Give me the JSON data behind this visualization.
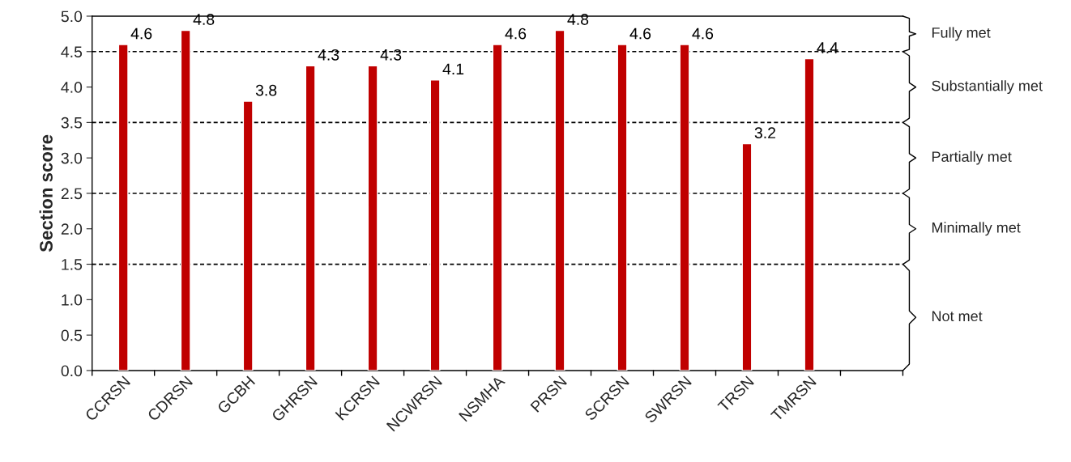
{
  "chart_data": {
    "type": "bar",
    "ylabel": "Section score",
    "categories": [
      "CCRSN",
      "CDRSN",
      "GCBH",
      "GHRSN",
      "KCRSN",
      "NCWRSN",
      "NSMHA",
      "PRSN",
      "SCRSN",
      "SWRSN",
      "TRSN",
      "TMRSN",
      null
    ],
    "values": [
      4.6,
      4.8,
      3.8,
      4.3,
      4.3,
      4.1,
      4.6,
      4.8,
      4.6,
      4.6,
      3.2,
      4.4,
      null
    ],
    "color": "#c00000",
    "ylim": [
      0,
      5
    ],
    "yticks": [
      {
        "value": 0,
        "label": "0.0"
      },
      {
        "value": 0.5,
        "label": "0.5"
      },
      {
        "value": 1,
        "label": "1.0"
      },
      {
        "value": 1.5,
        "label": "1.5"
      },
      {
        "value": 2,
        "label": "2.0"
      },
      {
        "value": 2.5,
        "label": "2.5"
      },
      {
        "value": 3,
        "label": "3.0"
      },
      {
        "value": 3.5,
        "label": "3.5"
      },
      {
        "value": 4,
        "label": "4.0"
      },
      {
        "value": 4.5,
        "label": "4.5"
      },
      {
        "value": 5,
        "label": "5.0"
      }
    ],
    "grid": false,
    "legend": false,
    "data_labels": true,
    "ref_lines": [
      {
        "axis": "y",
        "value": 1.5,
        "color": "#000000",
        "line_style": "dashed"
      },
      {
        "axis": "y",
        "value": 2.5,
        "color": "#000000",
        "line_style": "dashed"
      },
      {
        "axis": "y",
        "value": 3.5,
        "color": "#000000",
        "line_style": "dashed"
      },
      {
        "axis": "y",
        "value": 4.5,
        "color": "#000000",
        "line_style": "dashed"
      }
    ],
    "annotations": [
      "Fully met",
      "Substantially met",
      "Partially met",
      "Minimally met",
      "Not met"
    ]
  }
}
